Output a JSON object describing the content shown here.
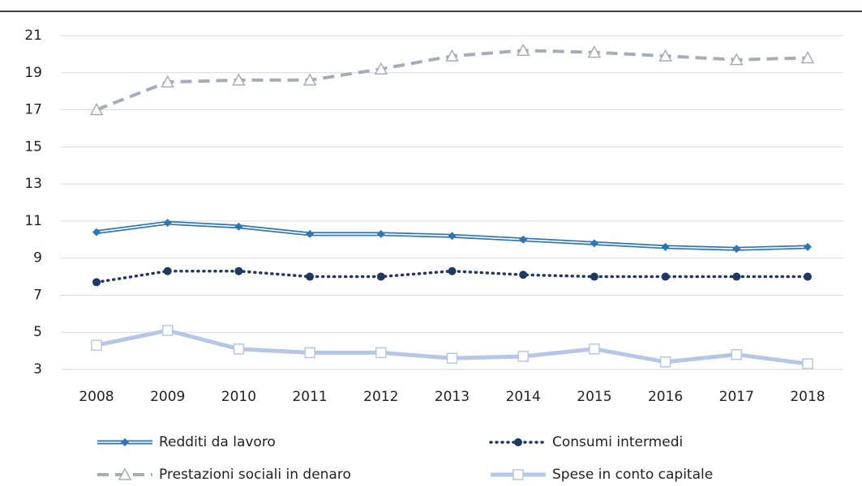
{
  "chart_data": {
    "type": "line",
    "categories": [
      "2008",
      "2009",
      "2010",
      "2011",
      "2012",
      "2013",
      "2014",
      "2015",
      "2016",
      "2017",
      "2018"
    ],
    "series": [
      {
        "name": "Redditi da lavoro",
        "color": "#2e75b6",
        "line_style": "double",
        "marker": "diamond",
        "values": [
          10.4,
          10.9,
          10.7,
          10.3,
          10.3,
          10.2,
          10.0,
          9.8,
          9.6,
          9.5,
          9.6
        ]
      },
      {
        "name": "Consumi intermedi",
        "color": "#1f3864",
        "line_style": "dotted",
        "marker": "circle",
        "values": [
          7.7,
          8.3,
          8.3,
          8.0,
          8.0,
          8.3,
          8.1,
          8.0,
          8.0,
          8.0,
          8.0
        ]
      },
      {
        "name": "Prestazioni sociali in denaro",
        "color": "#a5adbb",
        "line_style": "dashed",
        "marker": "triangle",
        "values": [
          17.0,
          18.5,
          18.6,
          18.6,
          19.2,
          19.9,
          20.2,
          20.1,
          19.9,
          19.7,
          19.8
        ]
      },
      {
        "name": "Spese in conto capitale",
        "color": "#b4c7e7",
        "line_style": "thick",
        "marker": "square",
        "values": [
          4.3,
          5.1,
          4.1,
          3.9,
          3.9,
          3.6,
          3.7,
          4.1,
          3.4,
          3.8,
          3.3
        ]
      }
    ],
    "ylim": [
      3,
      21
    ],
    "yticks": [
      3,
      5,
      7,
      9,
      11,
      13,
      15,
      17,
      19,
      21
    ],
    "grid": true
  }
}
